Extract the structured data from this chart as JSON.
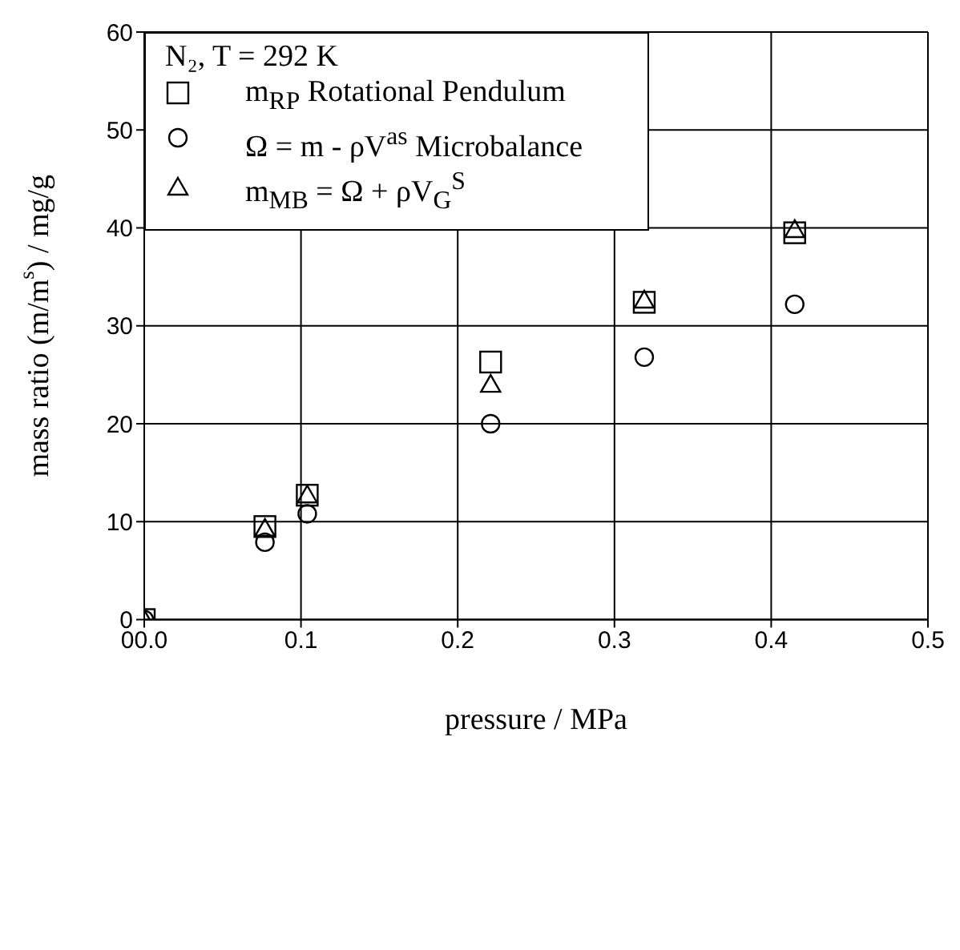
{
  "chart_data": {
    "type": "scatter",
    "xlabel": "pressure / MPa",
    "ylabel": "mass ratio (m/m$^{s}$) / mg/g",
    "legend_title": "N₂, T = 292 K",
    "xlim": [
      0,
      0.5
    ],
    "xticks": [
      {
        "value": 0,
        "label": "00.0"
      },
      0.1,
      0.2,
      0.3,
      0.4,
      0.5
    ],
    "ylim": [
      0,
      60
    ],
    "yticks": [
      0,
      10,
      20,
      30,
      40,
      50,
      60
    ],
    "grid": true,
    "legend": "top left",
    "series": [
      {
        "name": "m$_{RP}$  Rotational Pendulum",
        "color": "#000000",
        "marker": "square",
        "x": [
          0,
          0.077,
          0.104,
          0.221,
          0.319,
          0.415
        ],
        "values": [
          0,
          9.5,
          12.7,
          26.3,
          32.4,
          39.5
        ]
      },
      {
        "name": "Ω = m - ρV$^{as}$ Microbalance",
        "color": "#000000",
        "marker": "circle",
        "x": [
          0,
          0.077,
          0.104,
          0.221,
          0.319,
          0.415
        ],
        "values": [
          0,
          7.9,
          10.8,
          20.0,
          26.8,
          32.2
        ]
      },
      {
        "name": "m$_{MB}$ = Ω + ρV$_{G}$$^{S}$",
        "color": "#000000",
        "marker": "triangle",
        "x": [
          0,
          0.077,
          0.104,
          0.221,
          0.319,
          0.415
        ],
        "values": [
          0,
          9.3,
          12.7,
          24.0,
          32.6,
          39.8
        ]
      }
    ]
  }
}
